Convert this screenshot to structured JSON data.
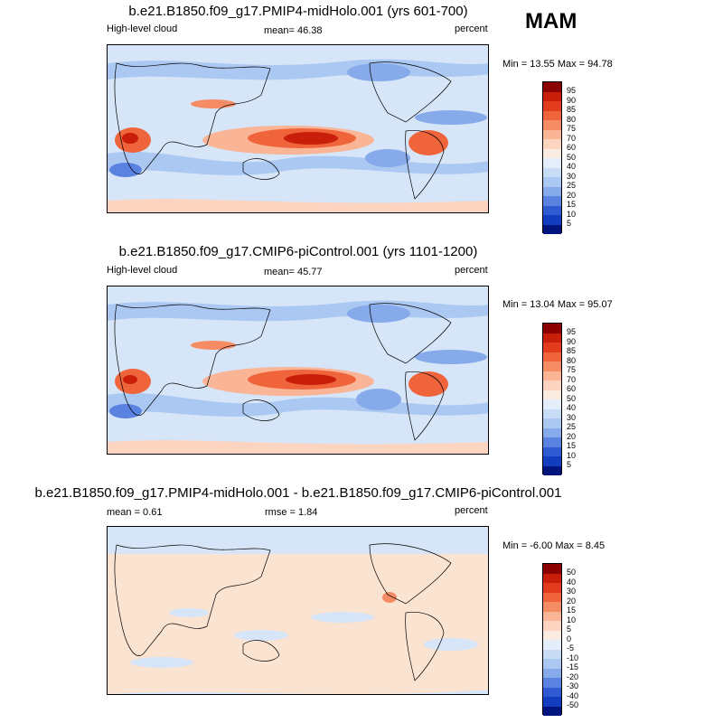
{
  "season": "MAM",
  "panels": [
    {
      "title": "b.e21.B1850.f09_g17.PMIP4-midHolo.001 (yrs 601-700)",
      "left_label": "High-level cloud",
      "center_label": "mean=  46.38",
      "right_label": "percent",
      "minmax": "Min =  13.55 Max =  94.78"
    },
    {
      "title": "b.e21.B1850.f09_g17.CMIP6-piControl.001 (yrs 1101-1200)",
      "left_label": "High-level cloud",
      "center_label": "mean=  45.77",
      "right_label": "percent",
      "minmax": "Min =  13.04 Max =  95.07"
    },
    {
      "title": "b.e21.B1850.f09_g17.PMIP4-midHolo.001 - b.e21.B1850.f09_g17.CMIP6-piControl.001",
      "left_label": "mean =   0.61",
      "center_label": "rmse =    1.84",
      "right_label": "percent",
      "minmax": "Min =  -6.00 Max =   8.45"
    }
  ],
  "colorbar_abs": {
    "labels": [
      "95",
      "90",
      "85",
      "80",
      "75",
      "70",
      "60",
      "50",
      "40",
      "30",
      "25",
      "20",
      "15",
      "10",
      "5"
    ],
    "colors": [
      "#8b0000",
      "#c81e0a",
      "#e23c1e",
      "#f0643c",
      "#f58c64",
      "#fab496",
      "#fcd4c0",
      "#fbece2",
      "#e3eefa",
      "#c8dcf6",
      "#aac8f2",
      "#87aaeb",
      "#5a82e1",
      "#2f5ad2",
      "#143cbe",
      "#00147d"
    ]
  },
  "colorbar_diff": {
    "labels": [
      "50",
      "40",
      "30",
      "20",
      "15",
      "10",
      "5",
      "0",
      "-5",
      "-10",
      "-15",
      "-20",
      "-30",
      "-40",
      "-50"
    ],
    "colors": [
      "#8b0000",
      "#c81e0a",
      "#e23c1e",
      "#f0643c",
      "#f58c64",
      "#fab496",
      "#fcd4c0",
      "#fbece2",
      "#e3eefa",
      "#c8dcf6",
      "#aac8f2",
      "#87aaeb",
      "#5a82e1",
      "#2f5ad2",
      "#143cbe",
      "#00147d"
    ]
  }
}
